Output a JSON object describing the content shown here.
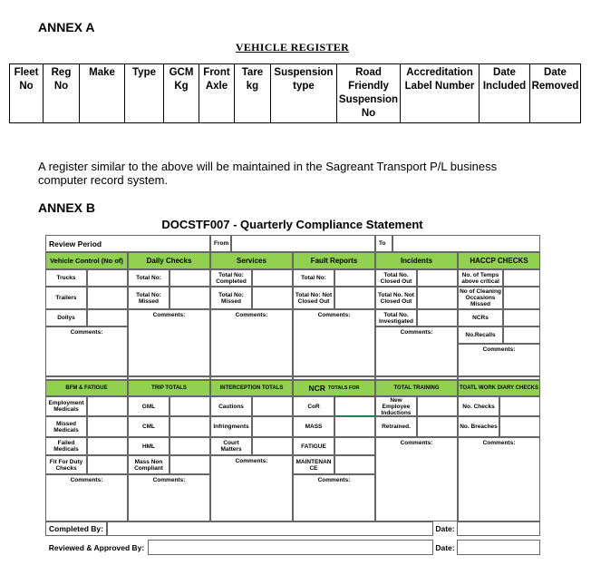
{
  "annex_a": {
    "heading": "ANNEX A",
    "title": "VEHICLE REGISTER",
    "columns": [
      "Fleet No",
      "Reg No",
      "Make",
      "Type",
      "GCM Kg",
      "Front Axle",
      "Tare kg",
      "Suspension type",
      "Road Friendly Suspension No",
      "Accreditation Label Number",
      "Date Included",
      "Date Removed"
    ]
  },
  "paragraph": "A register similar to the above will be maintained in the Sagreant Transport P/L business computer record system.",
  "annex_b": {
    "heading": "ANNEX B",
    "title": "DOCSTF007 - Quarterly Compliance Statement",
    "review_period": "Review Period",
    "from": "From",
    "to": "To",
    "comments": "Comments:",
    "top_headers": [
      "Vehicle Control (No of)",
      "Daily Checks",
      "Services",
      "Fault Reports",
      "Incidents",
      "HACCP CHECKS"
    ],
    "vehicle": [
      "Trucks",
      "Trailers",
      "Dollys"
    ],
    "daily": [
      "Total No:",
      "Total No: Missed"
    ],
    "services": [
      "Total No: Completed",
      "Total No: Missed"
    ],
    "fault": [
      "Total No:",
      "Total No: Not Closed Out"
    ],
    "incidents": [
      "Total No. Closed Out",
      "Total No. Not Closed Out",
      "Total No. Investigated"
    ],
    "haccp": [
      "No. of Temps above critical",
      "No of Cleaning Occasions Missed",
      "NCRs",
      "No.Recalls"
    ],
    "bottom_headers": [
      "BFM & FATIGUE",
      "TRIP TOTALS",
      "INTERCEPTION TOTALS",
      "NCR",
      "TOTAL TRAINING",
      "TOATL WORK DIARY CHECKS"
    ],
    "ncr_suffix": "TOTALS FOR",
    "bfm": [
      "Employment Medicals",
      "Missed Medicals",
      "Failed Medicals",
      "Fit For Duty Checks"
    ],
    "trip": [
      "GML",
      "CML",
      "HML",
      "Mass Non Compliant"
    ],
    "interception": [
      "Cautions",
      "Infringments",
      "Court Matters"
    ],
    "ncr": [
      "CoR",
      "MASS",
      "FATIGUE",
      "MAINTENANCE"
    ],
    "training": [
      "New Employee Inductions",
      "Retrained."
    ],
    "diary": [
      "No. Checks",
      "No. Breaches"
    ],
    "completed_by": "Completed By:",
    "reviewed_by": "Reviewed & Approved By:",
    "date": "Date:"
  },
  "colors": {
    "header_green": "#92d050",
    "selected_cell": "#217346"
  }
}
